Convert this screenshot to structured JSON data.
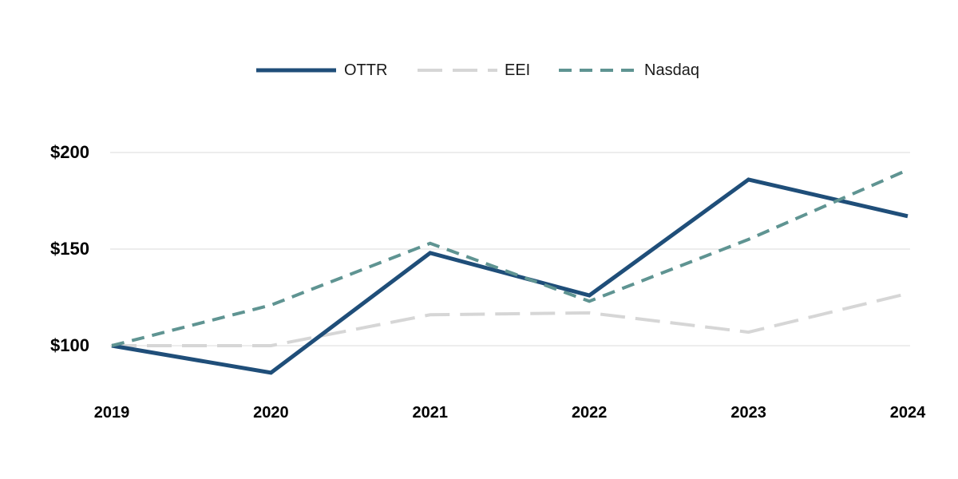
{
  "chart_data": {
    "type": "line",
    "title": "",
    "categories": [
      "2019",
      "2020",
      "2021",
      "2022",
      "2023",
      "2024"
    ],
    "series": [
      {
        "name": "OTTR",
        "values": [
          100,
          86,
          148,
          126,
          186,
          167
        ],
        "color": "#1F4E79",
        "line_style": "solid"
      },
      {
        "name": "EEI",
        "values": [
          100,
          100,
          116,
          117,
          107,
          127
        ],
        "color": "#D6D6D6",
        "line_style": "long-dash"
      },
      {
        "name": "Nasdaq",
        "values": [
          100,
          121,
          153,
          123,
          155,
          191
        ],
        "color": "#5F9492",
        "line_style": "dash"
      }
    ],
    "y_axis": {
      "tick_labels": [
        "$100",
        "$150",
        "$200"
      ],
      "tick_values": [
        100,
        150,
        200
      ],
      "ylim": [
        75,
        210
      ],
      "grid": true,
      "grid_color": "#E2E2E2"
    },
    "x_axis": {
      "labels": [
        "2019",
        "2020",
        "2021",
        "2022",
        "2023",
        "2024"
      ]
    },
    "legend": {
      "position": "top",
      "items": [
        "OTTR",
        "EEI",
        "Nasdaq"
      ]
    }
  }
}
